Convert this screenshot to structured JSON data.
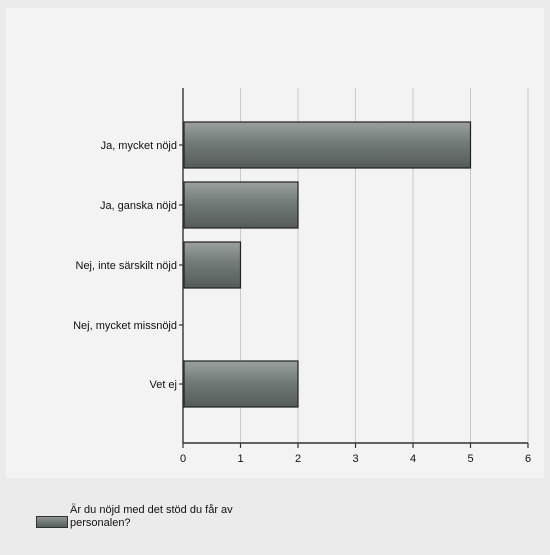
{
  "chart_data": {
    "type": "bar",
    "orientation": "horizontal",
    "categories": [
      "Ja, mycket nöjd",
      "Ja, ganska nöjd",
      "Nej, inte särskilt nöjd",
      "Nej, mycket missnöjd",
      "Vet ej"
    ],
    "series": [
      {
        "name": "Är du nöjd med det stöd du får av personalen?",
        "values": [
          5,
          2,
          1,
          0,
          2
        ]
      }
    ],
    "xlim": [
      0,
      6
    ],
    "xticks": [
      "0",
      "1",
      "2",
      "3",
      "4",
      "5",
      "6"
    ],
    "grid": true,
    "legend_position": "bottom-left",
    "colors": {
      "bar": "#6c7472",
      "bar_border": "#222222",
      "grid": "#c9c9c9",
      "axis": "#333333"
    }
  }
}
